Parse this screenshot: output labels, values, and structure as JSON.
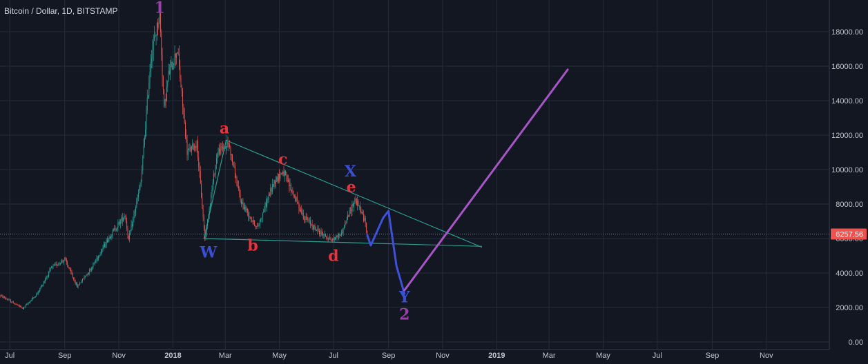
{
  "chart_title": "Bitcoin / Dollar, 1D, BITSTAMP",
  "chart_data": {
    "type": "candlestick",
    "title": "Bitcoin / Dollar, 1D, BITSTAMP",
    "xlabel": "",
    "ylabel": "",
    "ylim": [
      0,
      19500
    ],
    "x_range": [
      "2017-06-20",
      "2019-12-05"
    ],
    "y_ticks": [
      "0.00",
      "2000.00",
      "4000.00",
      "6000.00",
      "8000.00",
      "10000.00",
      "12000.00",
      "14000.00",
      "16000.00",
      "18000.00"
    ],
    "x_ticks": [
      {
        "label": "Jul",
        "date": "2017-07-01"
      },
      {
        "label": "Sep",
        "date": "2017-09-01"
      },
      {
        "label": "Nov",
        "date": "2017-11-01"
      },
      {
        "label": "2018",
        "date": "2018-01-01"
      },
      {
        "label": "Mar",
        "date": "2018-03-01"
      },
      {
        "label": "May",
        "date": "2018-05-01"
      },
      {
        "label": "Jul",
        "date": "2018-07-01"
      },
      {
        "label": "Sep",
        "date": "2018-09-01"
      },
      {
        "label": "Nov",
        "date": "2018-11-01"
      },
      {
        "label": "2019",
        "date": "2019-01-01"
      },
      {
        "label": "Mar",
        "date": "2019-03-01"
      },
      {
        "label": "May",
        "date": "2019-05-01"
      },
      {
        "label": "Jul",
        "date": "2019-07-01"
      },
      {
        "label": "Sep",
        "date": "2019-09-01"
      },
      {
        "label": "Nov",
        "date": "2019-11-01"
      }
    ],
    "price_anchors": [
      {
        "date": "2017-06-20",
        "close": 2700
      },
      {
        "date": "2017-07-16",
        "close": 1950
      },
      {
        "date": "2017-08-01",
        "close": 2800
      },
      {
        "date": "2017-08-17",
        "close": 4300
      },
      {
        "date": "2017-09-01",
        "close": 4800
      },
      {
        "date": "2017-09-15",
        "close": 3200
      },
      {
        "date": "2017-10-01",
        "close": 4300
      },
      {
        "date": "2017-10-20",
        "close": 6000
      },
      {
        "date": "2017-11-08",
        "close": 7400
      },
      {
        "date": "2017-11-12",
        "close": 5900
      },
      {
        "date": "2017-11-26",
        "close": 9300
      },
      {
        "date": "2017-12-07",
        "close": 16500
      },
      {
        "date": "2017-12-17",
        "close": 19000
      },
      {
        "date": "2017-12-22",
        "close": 13500
      },
      {
        "date": "2017-12-27",
        "close": 15500
      },
      {
        "date": "2018-01-06",
        "close": 17000
      },
      {
        "date": "2018-01-17",
        "close": 11000
      },
      {
        "date": "2018-01-28",
        "close": 11500
      },
      {
        "date": "2018-02-06",
        "close": 6000
      },
      {
        "date": "2018-02-20",
        "close": 11000
      },
      {
        "date": "2018-03-05",
        "close": 11500
      },
      {
        "date": "2018-03-18",
        "close": 8200
      },
      {
        "date": "2018-04-06",
        "close": 6600
      },
      {
        "date": "2018-04-25",
        "close": 9300
      },
      {
        "date": "2018-05-05",
        "close": 9900
      },
      {
        "date": "2018-05-28",
        "close": 7300
      },
      {
        "date": "2018-06-12",
        "close": 6500
      },
      {
        "date": "2018-06-29",
        "close": 5900
      },
      {
        "date": "2018-07-10",
        "close": 6300
      },
      {
        "date": "2018-07-25",
        "close": 8300
      },
      {
        "date": "2018-08-01",
        "close": 7600
      },
      {
        "date": "2018-08-06",
        "close": 6900
      },
      {
        "date": "2018-08-08",
        "close": 6257.56
      }
    ],
    "last_price": "6257.56",
    "last_price_value": 6257.56,
    "drawings": {
      "upper_trendline": [
        {
          "date": "2018-03-02",
          "y": 11700
        },
        {
          "date": "2018-12-15",
          "y": 5500
        }
      ],
      "lower_trendline": [
        {
          "date": "2018-02-05",
          "y": 6000
        },
        {
          "date": "2018-12-15",
          "y": 5550
        }
      ],
      "left_line": [
        {
          "date": "2018-02-05",
          "y": 6000
        },
        {
          "date": "2018-03-02",
          "y": 11700
        }
      ],
      "blue_projection": [
        {
          "date": "2018-08-08",
          "y": 6200
        },
        {
          "date": "2018-08-12",
          "y": 5600
        },
        {
          "date": "2018-08-26",
          "y": 7200
        },
        {
          "date": "2018-09-01",
          "y": 7600
        },
        {
          "date": "2018-09-10",
          "y": 4400
        },
        {
          "date": "2018-09-19",
          "y": 2800
        }
      ],
      "purple_projection": [
        {
          "date": "2018-09-19",
          "y": 3000
        },
        {
          "date": "2019-03-22",
          "y": 15800
        }
      ]
    },
    "annotations": [
      {
        "text": "1",
        "date": "2017-12-17",
        "y": 19100,
        "color": "#9c3fa8"
      },
      {
        "text": "a",
        "date": "2018-02-28",
        "y": 12100,
        "color": "#e8323c"
      },
      {
        "text": "b",
        "date": "2018-04-01",
        "y": 5300,
        "color": "#e8323c"
      },
      {
        "text": "c",
        "date": "2018-05-05",
        "y": 10300,
        "color": "#e8323c"
      },
      {
        "text": "d",
        "date": "2018-07-01",
        "y": 4700,
        "color": "#e8323c"
      },
      {
        "text": "X",
        "date": "2018-07-20",
        "y": 9600,
        "color": "#3a4fd4"
      },
      {
        "text": "e",
        "date": "2018-07-21",
        "y": 8700,
        "color": "#e8323c"
      },
      {
        "text": "W",
        "date": "2018-02-10",
        "y": 4900,
        "color": "#3a4fd4"
      },
      {
        "text": "Y",
        "date": "2018-09-19",
        "y": 2300,
        "color": "#3a4fd4"
      },
      {
        "text": "2",
        "date": "2018-09-19",
        "y": 1300,
        "color": "#9c3fa8"
      }
    ]
  },
  "colors": {
    "background": "#131722",
    "grid": "#262b3a",
    "axis_text": "#c3c6ce",
    "candle_up": "#26a69a",
    "candle_down": "#ef5350",
    "last_price_line": "#ef5350",
    "trendline": "#2a9d8f",
    "blue_projection": "#3f51d9",
    "purple_projection": "#a855c8"
  }
}
